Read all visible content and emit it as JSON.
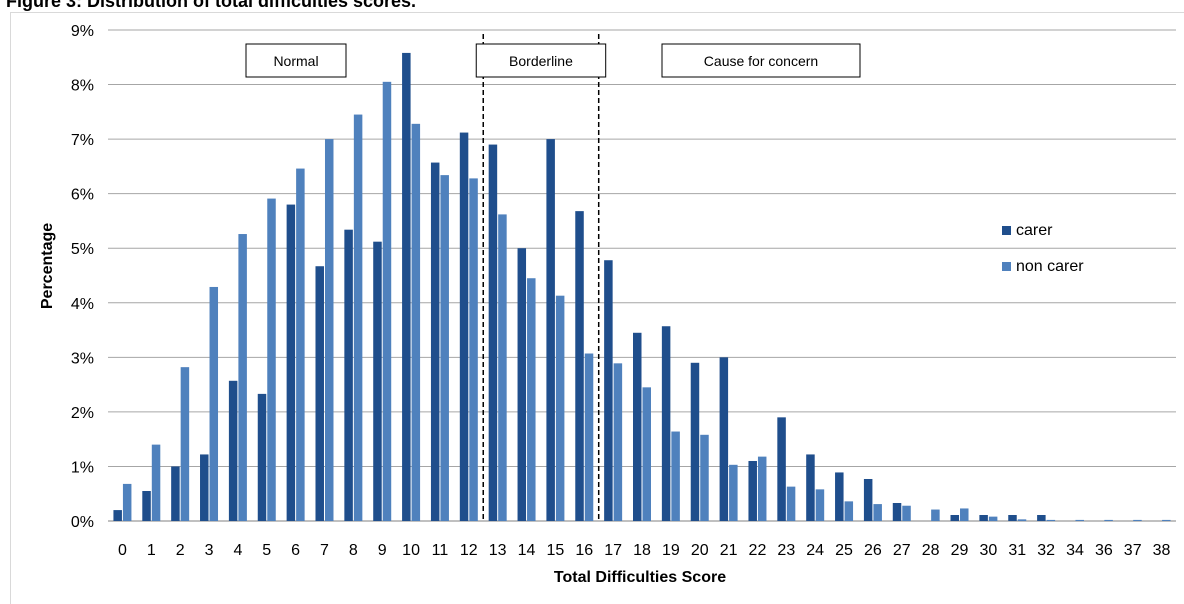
{
  "figure_title": "Figure 3: Distribution of total difficulties scores.",
  "chart_data": {
    "type": "bar",
    "xlabel": "Total Difficulties Score",
    "ylabel": "Percentage",
    "ylim": [
      0,
      9
    ],
    "yticks": [
      "0%",
      "1%",
      "2%",
      "3%",
      "4%",
      "5%",
      "6%",
      "7%",
      "8%",
      "9%"
    ],
    "grid": true,
    "legend_position": "right",
    "categories": [
      "0",
      "1",
      "2",
      "3",
      "4",
      "5",
      "6",
      "7",
      "8",
      "9",
      "10",
      "11",
      "12",
      "13",
      "14",
      "15",
      "16",
      "17",
      "18",
      "19",
      "20",
      "21",
      "22",
      "23",
      "24",
      "25",
      "26",
      "27",
      "28",
      "29",
      "30",
      "31",
      "32",
      "34",
      "36",
      "37",
      "38"
    ],
    "series": [
      {
        "name": "carer",
        "color": "#1f4e8c",
        "values": [
          0.2,
          0.55,
          1.0,
          1.22,
          2.57,
          2.33,
          5.8,
          4.67,
          5.34,
          5.12,
          8.58,
          6.57,
          7.12,
          6.9,
          5.0,
          7.0,
          5.68,
          4.78,
          3.45,
          3.57,
          2.9,
          3.0,
          1.1,
          1.9,
          1.22,
          0.89,
          0.77,
          0.33,
          0,
          0.11,
          0.11,
          0.11,
          0.11,
          0,
          0,
          0,
          0
        ]
      },
      {
        "name": "non carer",
        "color": "#4f81bd",
        "values": [
          0.68,
          1.4,
          2.82,
          4.29,
          5.26,
          5.91,
          6.46,
          7.0,
          7.45,
          8.05,
          7.28,
          6.34,
          6.28,
          5.62,
          4.45,
          4.13,
          3.07,
          2.89,
          2.45,
          1.64,
          1.58,
          1.03,
          1.18,
          0.63,
          0.58,
          0.36,
          0.31,
          0.28,
          0.21,
          0.23,
          0.08,
          0.03,
          0.02,
          0.02,
          0.02,
          0.02,
          0.02
        ]
      }
    ],
    "annotations": [
      {
        "label": "Normal",
        "range": "0-12"
      },
      {
        "label": "Borderline",
        "range": "13-16"
      },
      {
        "label": "Cause for concern",
        "range": "17+"
      }
    ],
    "dividers_after": [
      "12",
      "16"
    ]
  }
}
